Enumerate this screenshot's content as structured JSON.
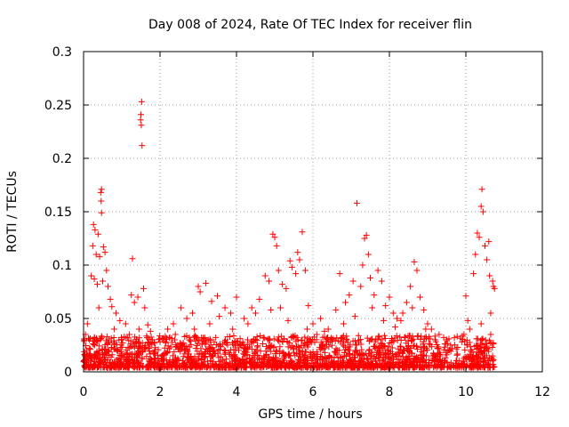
{
  "chart_data": {
    "type": "scatter",
    "title": "Day 008 of 2024, Rate Of TEC Index for receiver flin",
    "xlabel": "GPS time / hours",
    "ylabel": "ROTI / TECUs",
    "xlim": [
      0,
      12
    ],
    "ylim": [
      0,
      0.3
    ],
    "xticks": [
      0,
      2,
      4,
      6,
      8,
      10,
      12
    ],
    "xtick_labels": [
      "0",
      "2",
      "4",
      "6",
      "8",
      "10",
      "12"
    ],
    "yticks": [
      0,
      0.05,
      0.1,
      0.15,
      0.2,
      0.25,
      0.3
    ],
    "ytick_labels": [
      "0",
      "0.05",
      "0.1",
      "0.15",
      "0.2",
      "0.25",
      "0.3"
    ],
    "grid": true,
    "marker": "+",
    "color": "#ff0000",
    "series": [
      {
        "name": "ROTI",
        "points": [
          [
            1.52,
            0.253
          ],
          [
            1.5,
            0.241
          ],
          [
            1.49,
            0.236
          ],
          [
            1.51,
            0.231
          ],
          [
            1.53,
            0.212
          ],
          [
            0.47,
            0.171
          ],
          [
            0.45,
            0.168
          ],
          [
            0.46,
            0.16
          ],
          [
            0.47,
            0.149
          ],
          [
            0.26,
            0.138
          ],
          [
            0.3,
            0.133
          ],
          [
            0.38,
            0.129
          ],
          [
            0.52,
            0.117
          ],
          [
            0.56,
            0.112
          ],
          [
            0.24,
            0.118
          ],
          [
            0.33,
            0.11
          ],
          [
            0.42,
            0.108
          ],
          [
            0.6,
            0.095
          ],
          [
            0.2,
            0.09
          ],
          [
            0.28,
            0.087
          ],
          [
            0.36,
            0.082
          ],
          [
            0.5,
            0.085
          ],
          [
            0.64,
            0.08
          ],
          [
            0.7,
            0.068
          ],
          [
            0.74,
            0.061
          ],
          [
            0.85,
            0.055
          ],
          [
            0.95,
            0.048
          ],
          [
            1.28,
            0.106
          ],
          [
            1.25,
            0.072
          ],
          [
            1.33,
            0.065
          ],
          [
            1.42,
            0.07
          ],
          [
            1.57,
            0.078
          ],
          [
            1.6,
            0.06
          ],
          [
            1.68,
            0.044
          ],
          [
            1.75,
            0.038
          ],
          [
            2.2,
            0.04
          ],
          [
            2.35,
            0.045
          ],
          [
            2.55,
            0.06
          ],
          [
            2.7,
            0.05
          ],
          [
            2.85,
            0.055
          ],
          [
            3.0,
            0.08
          ],
          [
            3.05,
            0.075
          ],
          [
            3.2,
            0.083
          ],
          [
            3.35,
            0.066
          ],
          [
            3.5,
            0.071
          ],
          [
            3.55,
            0.052
          ],
          [
            3.7,
            0.06
          ],
          [
            3.85,
            0.055
          ],
          [
            4.0,
            0.07
          ],
          [
            4.2,
            0.05
          ],
          [
            4.4,
            0.06
          ],
          [
            4.6,
            0.068
          ],
          [
            4.75,
            0.09
          ],
          [
            4.85,
            0.085
          ],
          [
            4.95,
            0.129
          ],
          [
            5.0,
            0.126
          ],
          [
            5.05,
            0.118
          ],
          [
            5.1,
            0.095
          ],
          [
            5.2,
            0.082
          ],
          [
            5.3,
            0.078
          ],
          [
            5.4,
            0.104
          ],
          [
            5.45,
            0.098
          ],
          [
            5.55,
            0.092
          ],
          [
            5.6,
            0.112
          ],
          [
            5.65,
            0.105
          ],
          [
            5.72,
            0.131
          ],
          [
            5.8,
            0.095
          ],
          [
            5.88,
            0.062
          ],
          [
            6.0,
            0.045
          ],
          [
            6.2,
            0.05
          ],
          [
            6.4,
            0.04
          ],
          [
            6.6,
            0.058
          ],
          [
            6.7,
            0.092
          ],
          [
            6.85,
            0.065
          ],
          [
            6.95,
            0.072
          ],
          [
            7.05,
            0.085
          ],
          [
            7.15,
            0.158
          ],
          [
            7.25,
            0.08
          ],
          [
            7.3,
            0.1
          ],
          [
            7.35,
            0.125
          ],
          [
            7.4,
            0.128
          ],
          [
            7.45,
            0.11
          ],
          [
            7.5,
            0.088
          ],
          [
            7.6,
            0.072
          ],
          [
            7.7,
            0.095
          ],
          [
            7.8,
            0.085
          ],
          [
            7.9,
            0.062
          ],
          [
            8.0,
            0.07
          ],
          [
            8.1,
            0.055
          ],
          [
            8.2,
            0.05
          ],
          [
            8.3,
            0.048
          ],
          [
            8.45,
            0.065
          ],
          [
            8.55,
            0.08
          ],
          [
            8.65,
            0.103
          ],
          [
            8.72,
            0.095
          ],
          [
            8.8,
            0.07
          ],
          [
            8.9,
            0.058
          ],
          [
            9.0,
            0.045
          ],
          [
            9.1,
            0.04
          ],
          [
            9.3,
            0.035
          ],
          [
            9.5,
            0.03
          ],
          [
            9.7,
            0.032
          ],
          [
            9.9,
            0.028
          ],
          [
            10.0,
            0.071
          ],
          [
            10.05,
            0.048
          ],
          [
            10.2,
            0.092
          ],
          [
            10.25,
            0.11
          ],
          [
            10.3,
            0.13
          ],
          [
            10.35,
            0.126
          ],
          [
            10.4,
            0.155
          ],
          [
            10.42,
            0.171
          ],
          [
            10.45,
            0.15
          ],
          [
            10.5,
            0.118
          ],
          [
            10.55,
            0.105
          ],
          [
            10.6,
            0.122
          ],
          [
            10.62,
            0.09
          ],
          [
            10.65,
            0.055
          ],
          [
            10.7,
            0.085
          ],
          [
            10.72,
            0.08
          ],
          [
            10.75,
            0.078
          ],
          [
            0.05,
            0.035
          ],
          [
            0.1,
            0.045
          ],
          [
            0.15,
            0.03
          ],
          [
            0.4,
            0.06
          ],
          [
            0.8,
            0.04
          ],
          [
            1.0,
            0.03
          ],
          [
            1.1,
            0.045
          ],
          [
            1.2,
            0.035
          ],
          [
            1.45,
            0.04
          ],
          [
            1.8,
            0.03
          ],
          [
            2.0,
            0.028
          ],
          [
            2.4,
            0.035
          ],
          [
            2.9,
            0.04
          ],
          [
            3.3,
            0.045
          ],
          [
            3.9,
            0.04
          ],
          [
            4.3,
            0.045
          ],
          [
            4.5,
            0.055
          ],
          [
            4.9,
            0.058
          ],
          [
            5.15,
            0.06
          ],
          [
            5.35,
            0.048
          ],
          [
            5.85,
            0.04
          ],
          [
            6.1,
            0.035
          ],
          [
            6.3,
            0.038
          ],
          [
            6.5,
            0.03
          ],
          [
            6.8,
            0.045
          ],
          [
            7.1,
            0.052
          ],
          [
            7.55,
            0.06
          ],
          [
            7.85,
            0.048
          ],
          [
            8.15,
            0.042
          ],
          [
            8.35,
            0.055
          ],
          [
            8.6,
            0.06
          ],
          [
            8.95,
            0.04
          ],
          [
            9.2,
            0.03
          ],
          [
            9.6,
            0.025
          ],
          [
            9.95,
            0.035
          ],
          [
            10.1,
            0.04
          ],
          [
            10.4,
            0.045
          ],
          [
            10.65,
            0.035
          ]
        ]
      }
    ]
  }
}
